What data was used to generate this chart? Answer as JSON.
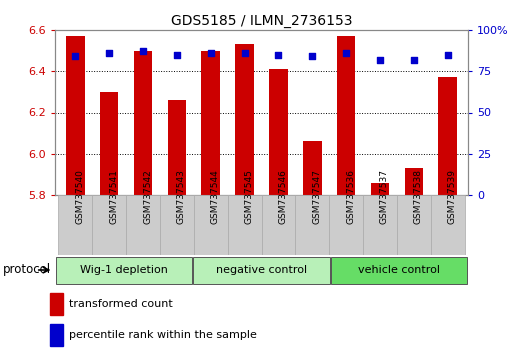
{
  "title": "GDS5185 / ILMN_2736153",
  "samples": [
    "GSM737540",
    "GSM737541",
    "GSM737542",
    "GSM737543",
    "GSM737544",
    "GSM737545",
    "GSM737546",
    "GSM737547",
    "GSM737536",
    "GSM737537",
    "GSM737538",
    "GSM737539"
  ],
  "bar_values": [
    6.57,
    6.3,
    6.5,
    6.26,
    6.5,
    6.53,
    6.41,
    6.06,
    6.57,
    5.86,
    5.93,
    6.37
  ],
  "dot_values": [
    84,
    86,
    87,
    85,
    86,
    86,
    85,
    84,
    86,
    82,
    82,
    85
  ],
  "groups": [
    {
      "label": "Wig-1 depletion",
      "start": 0,
      "end": 4
    },
    {
      "label": "negative control",
      "start": 4,
      "end": 8
    },
    {
      "label": "vehicle control",
      "start": 8,
      "end": 12
    }
  ],
  "ylim_left": [
    5.8,
    6.6
  ],
  "ylim_right": [
    0,
    100
  ],
  "yticks_left": [
    5.8,
    6.0,
    6.2,
    6.4,
    6.6
  ],
  "yticks_right": [
    0,
    25,
    50,
    75,
    100
  ],
  "ytick_labels_right": [
    "0",
    "25",
    "50",
    "75",
    "100%"
  ],
  "bar_color": "#cc0000",
  "dot_color": "#0000cc",
  "bar_bottom": 5.8,
  "legend_items": [
    {
      "label": "transformed count",
      "color": "#cc0000"
    },
    {
      "label": "percentile rank within the sample",
      "color": "#0000cc"
    }
  ],
  "protocol_label": "protocol",
  "group_colors": [
    "#b8f0b8",
    "#b8f0b8",
    "#66dd66"
  ],
  "tick_label_color_left": "#cc0000",
  "tick_label_color_right": "#0000cc",
  "grid_color": "#000000",
  "xtick_box_color": "#cccccc",
  "title_fontsize": 10
}
